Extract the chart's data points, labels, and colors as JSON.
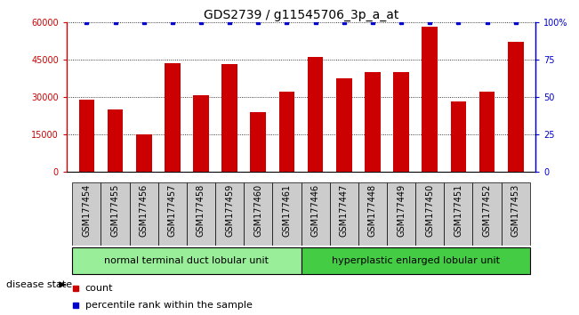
{
  "title": "GDS2739 / g11545706_3p_a_at",
  "categories": [
    "GSM177454",
    "GSM177455",
    "GSM177456",
    "GSM177457",
    "GSM177458",
    "GSM177459",
    "GSM177460",
    "GSM177461",
    "GSM177446",
    "GSM177447",
    "GSM177448",
    "GSM177449",
    "GSM177450",
    "GSM177451",
    "GSM177452",
    "GSM177453"
  ],
  "bar_values": [
    29000,
    25000,
    15000,
    43500,
    30500,
    43000,
    24000,
    32000,
    46000,
    37500,
    40000,
    40000,
    58000,
    28000,
    32000,
    52000
  ],
  "percentile_values": [
    100,
    100,
    100,
    100,
    100,
    100,
    100,
    100,
    100,
    100,
    100,
    100,
    100,
    100,
    100,
    100
  ],
  "bar_color": "#cc0000",
  "percentile_color": "#0000cc",
  "ylim_left": [
    0,
    60000
  ],
  "ylim_right": [
    0,
    100
  ],
  "yticks_left": [
    0,
    15000,
    30000,
    45000,
    60000
  ],
  "ytick_labels_left": [
    "0",
    "15000",
    "30000",
    "45000",
    "60000"
  ],
  "yticks_right": [
    0,
    25,
    50,
    75,
    100
  ],
  "ytick_labels_right": [
    "0",
    "25",
    "50",
    "75",
    "100%"
  ],
  "group1_label": "normal terminal duct lobular unit",
  "group2_label": "hyperplastic enlarged lobular unit",
  "group1_indices": [
    0,
    7
  ],
  "group2_indices": [
    8,
    15
  ],
  "group1_color": "#99ee99",
  "group2_color": "#44cc44",
  "xtick_bg_color": "#cccccc",
  "disease_state_label": "disease state",
  "legend_count_label": "count",
  "legend_percentile_label": "percentile rank within the sample",
  "background_color": "#ffffff",
  "plot_bg_color": "#ffffff",
  "bar_width": 0.55,
  "title_fontsize": 10,
  "tick_fontsize": 7,
  "label_fontsize": 7
}
